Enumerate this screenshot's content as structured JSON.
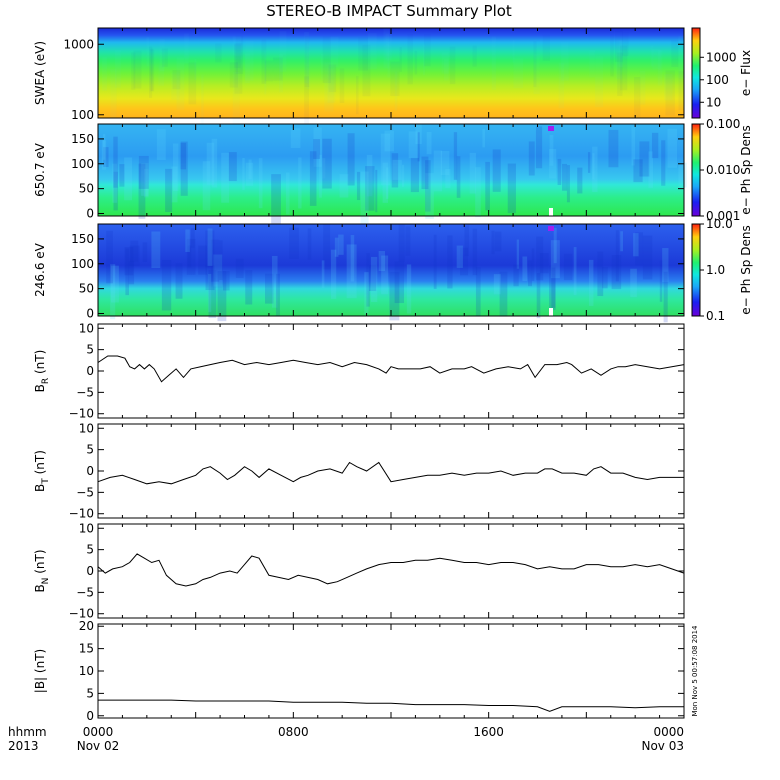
{
  "title": "STEREO-B IMPACT Summary Plot",
  "colors": {
    "trace": "#000000",
    "axis": "#000000"
  },
  "chart_data": [
    {
      "type": "heatmap",
      "id": "swea",
      "ylabel": "SWEA (eV)",
      "log_y": true,
      "ylim": [
        90,
        1700
      ],
      "y_ticks": [
        {
          "v": 100,
          "label": "100"
        },
        {
          "v": 1000,
          "label": "1000"
        }
      ],
      "colorbar": {
        "label": "e− Flux",
        "log": true,
        "range": [
          2,
          20000
        ],
        "ticks": [
          {
            "v": 10,
            "label": "10"
          },
          {
            "v": 100,
            "label": "100"
          },
          {
            "v": 1000,
            "label": "1000"
          }
        ]
      }
    },
    {
      "type": "heatmap",
      "id": "pad650",
      "ylabel": "650.7 eV",
      "ylim": [
        -5,
        180
      ],
      "y_ticks": [
        {
          "v": 0,
          "label": "0"
        },
        {
          "v": 50,
          "label": "50"
        },
        {
          "v": 100,
          "label": "100"
        },
        {
          "v": 150,
          "label": "150"
        }
      ],
      "colorbar": {
        "label": "e− Ph Sp Dens",
        "log": true,
        "range": [
          0.001,
          0.1
        ],
        "ticks": [
          {
            "v": 0.001,
            "label": "0.001"
          },
          {
            "v": 0.01,
            "label": "0.010"
          },
          {
            "v": 0.1,
            "label": "0.100"
          }
        ]
      }
    },
    {
      "type": "heatmap",
      "id": "pad246",
      "ylabel": "246.6 eV",
      "ylim": [
        -5,
        180
      ],
      "y_ticks": [
        {
          "v": 0,
          "label": "0"
        },
        {
          "v": 50,
          "label": "50"
        },
        {
          "v": 100,
          "label": "100"
        },
        {
          "v": 150,
          "label": "150"
        }
      ],
      "colorbar": {
        "label": "e− Ph Sp Dens",
        "log": true,
        "range": [
          0.1,
          10
        ],
        "ticks": [
          {
            "v": 0.1,
            "label": "0.1"
          },
          {
            "v": 1,
            "label": "1.0"
          },
          {
            "v": 10,
            "label": "10.0"
          }
        ]
      }
    },
    {
      "type": "line",
      "id": "br",
      "ylabel": "B",
      "ylabel_sub": "R",
      "ylabel_unit": "(nT)",
      "ylim": [
        -11,
        11
      ],
      "y_ticks": [
        {
          "v": -10,
          "label": "−10"
        },
        {
          "v": -5,
          "label": "−5"
        },
        {
          "v": 0,
          "label": "0"
        },
        {
          "v": 5,
          "label": "5"
        },
        {
          "v": 10,
          "label": "10"
        }
      ],
      "x": [
        0,
        0.4,
        0.8,
        1.1,
        1.3,
        1.5,
        1.7,
        1.9,
        2.1,
        2.3,
        2.6,
        2.9,
        3.2,
        3.5,
        3.8,
        4.2,
        4.6,
        5,
        5.5,
        6,
        6.5,
        7,
        7.5,
        8,
        8.5,
        9,
        9.5,
        10,
        10.5,
        11,
        11.5,
        11.8,
        12,
        12.3,
        12.8,
        13.2,
        13.6,
        14,
        14.5,
        15,
        15.3,
        15.8,
        16.3,
        16.8,
        17.3,
        17.6,
        17.9,
        18.3,
        18.8,
        19.2,
        19.4,
        19.8,
        20.2,
        20.6,
        21,
        21.3,
        21.6,
        22,
        22.5,
        23,
        23.5,
        24
      ],
      "y": [
        2,
        3.5,
        3.5,
        3,
        1,
        0.5,
        1.5,
        0.5,
        1.5,
        0.5,
        -2.5,
        -1,
        0.5,
        -1.5,
        0.5,
        1,
        1.5,
        2,
        2.5,
        1.5,
        2,
        1.5,
        2,
        2.5,
        2,
        1.5,
        2,
        1,
        2,
        1.5,
        0.5,
        -0.5,
        1,
        0.5,
        0.5,
        0.5,
        1,
        -0.5,
        0.5,
        0.5,
        1,
        -0.5,
        0.5,
        1,
        0.5,
        1.5,
        -1.5,
        1.5,
        1.5,
        2,
        1.5,
        -0.5,
        0.5,
        -1,
        0.5,
        1,
        1,
        1.5,
        1,
        0.5,
        1,
        1.5
      ]
    },
    {
      "type": "line",
      "id": "bt",
      "ylabel": "B",
      "ylabel_sub": "T",
      "ylabel_unit": "(nT)",
      "ylim": [
        -11,
        11
      ],
      "y_ticks": [
        {
          "v": -10,
          "label": "−10"
        },
        {
          "v": -5,
          "label": "−5"
        },
        {
          "v": 0,
          "label": "0"
        },
        {
          "v": 5,
          "label": "5"
        },
        {
          "v": 10,
          "label": "10"
        }
      ],
      "x": [
        0,
        0.5,
        1,
        1.5,
        2,
        2.5,
        3,
        3.5,
        4,
        4.3,
        4.6,
        5,
        5.3,
        5.6,
        6,
        6.3,
        6.6,
        7,
        7.5,
        8,
        8.3,
        8.6,
        9,
        9.5,
        10,
        10.3,
        10.6,
        11,
        11.5,
        12,
        12.5,
        13,
        13.5,
        14,
        14.5,
        15,
        15.5,
        16,
        16.5,
        17,
        17.5,
        18,
        18.3,
        18.6,
        19,
        19.5,
        20,
        20.3,
        20.6,
        21,
        21.5,
        22,
        22.5,
        23,
        23.5,
        24
      ],
      "y": [
        -2.5,
        -1.5,
        -1,
        -2,
        -3,
        -2.5,
        -3,
        -2,
        -1,
        0.5,
        1,
        -0.5,
        -2,
        -1,
        1,
        0,
        -1.5,
        0.5,
        -1,
        -2.5,
        -1.5,
        -1,
        0,
        0.5,
        -0.5,
        2,
        1,
        0,
        2,
        -2.5,
        -2,
        -1.5,
        -1,
        -1,
        -0.5,
        -1,
        -0.5,
        -0.5,
        0,
        -1,
        -0.5,
        -0.5,
        0.5,
        0.5,
        -0.5,
        -0.5,
        -1,
        0.5,
        1,
        -0.5,
        -0.5,
        -1.5,
        -2,
        -1.5,
        -1.5,
        -1.5
      ]
    },
    {
      "type": "line",
      "id": "bn",
      "ylabel": "B",
      "ylabel_sub": "N",
      "ylabel_unit": "(nT)",
      "ylim": [
        -11,
        11
      ],
      "y_ticks": [
        {
          "v": -10,
          "label": "−10"
        },
        {
          "v": -5,
          "label": "−5"
        },
        {
          "v": 0,
          "label": "0"
        },
        {
          "v": 5,
          "label": "5"
        },
        {
          "v": 10,
          "label": "10"
        }
      ],
      "x": [
        0,
        0.3,
        0.6,
        1,
        1.3,
        1.6,
        1.9,
        2.2,
        2.5,
        2.8,
        3.2,
        3.6,
        4,
        4.3,
        4.6,
        5,
        5.4,
        5.7,
        6,
        6.3,
        6.6,
        7,
        7.4,
        7.8,
        8.2,
        8.6,
        9,
        9.4,
        9.8,
        10.2,
        10.6,
        11,
        11.5,
        12,
        12.5,
        13,
        13.5,
        14,
        14.5,
        15,
        15.5,
        16,
        16.5,
        17,
        17.5,
        18,
        18.5,
        19,
        19.5,
        20,
        20.5,
        21,
        21.5,
        22,
        22.5,
        23,
        23.5,
        24
      ],
      "y": [
        1,
        -0.5,
        0.5,
        1,
        2,
        4,
        3,
        2,
        2.5,
        -1,
        -3,
        -3.5,
        -3,
        -2,
        -1.5,
        -0.5,
        0,
        -0.5,
        1.5,
        3.5,
        3,
        -1,
        -1.5,
        -2,
        -1,
        -1.5,
        -2,
        -3,
        -2.5,
        -1.5,
        -0.5,
        0.5,
        1.5,
        2,
        2,
        2.5,
        2.5,
        3,
        2.5,
        2,
        2,
        1.5,
        2,
        2,
        1.5,
        0.5,
        1,
        0.5,
        0.5,
        1.5,
        1.5,
        1,
        1,
        1.5,
        1,
        1.5,
        0.5,
        -0.5
      ]
    },
    {
      "type": "line",
      "id": "bmag",
      "ylabel": "|B| (nT)",
      "ylim": [
        -0.5,
        20.5
      ],
      "y_ticks": [
        {
          "v": 0,
          "label": "0"
        },
        {
          "v": 5,
          "label": "5"
        },
        {
          "v": 10,
          "label": "10"
        },
        {
          "v": 15,
          "label": "15"
        },
        {
          "v": 20,
          "label": "20"
        }
      ],
      "x": [
        0,
        1,
        2,
        3,
        4,
        5,
        6,
        7,
        8,
        9,
        10,
        11,
        12,
        13,
        14,
        15,
        16,
        17,
        18,
        18.5,
        19,
        20,
        21,
        22,
        23,
        24
      ],
      "y": [
        3.5,
        3.5,
        3.5,
        3.5,
        3.3,
        3.3,
        3.3,
        3.3,
        3,
        3,
        3,
        2.8,
        2.8,
        2.5,
        2.5,
        2.5,
        2.3,
        2.3,
        2,
        1,
        2,
        2,
        2,
        1.8,
        2,
        2
      ],
      "annotation": "Mon Nov  5 00:57:08 2014"
    }
  ],
  "x_axis": {
    "range": [
      0,
      24
    ],
    "unit_label": "hhmm",
    "year_label": "2013",
    "ticks": [
      {
        "v": 0,
        "label": "0000",
        "date": "Nov 02"
      },
      {
        "v": 8,
        "label": "0800",
        "date": ""
      },
      {
        "v": 16,
        "label": "1600",
        "date": ""
      },
      {
        "v": 24,
        "label": "0000",
        "date": "Nov 03"
      }
    ]
  }
}
